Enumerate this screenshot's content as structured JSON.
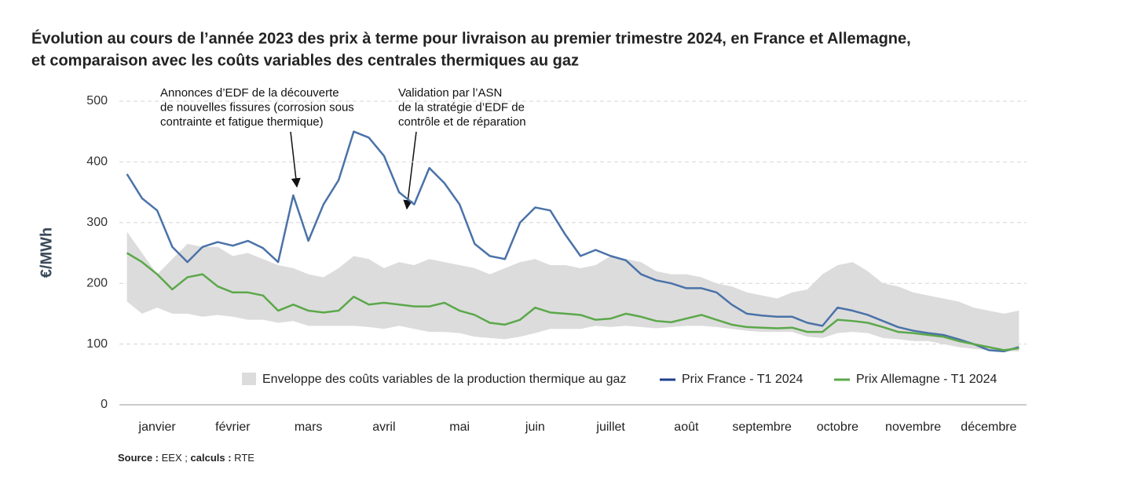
{
  "chart_data": {
    "type": "line",
    "title": [
      "Évolution au cours de l’année 2023 des prix à terme pour livraison au premier trimestre 2024, en France et Allemagne,",
      "et comparaison avec les coûts variables des centrales thermiques au gaz"
    ],
    "y_label": "€/MWh",
    "categories": [
      null,
      null,
      "janvier",
      null,
      null,
      null,
      null,
      "février",
      null,
      null,
      null,
      null,
      "mars",
      null,
      null,
      null,
      null,
      "avril",
      null,
      null,
      null,
      null,
      "mai",
      null,
      null,
      null,
      null,
      "juin",
      null,
      null,
      null,
      null,
      "juillet",
      null,
      null,
      null,
      null,
      "août",
      null,
      null,
      null,
      null,
      "septembre",
      null,
      null,
      null,
      null,
      "octobre",
      null,
      null,
      null,
      null,
      "novembre",
      null,
      null,
      null,
      null,
      "décembre",
      null,
      null
    ],
    "ylim": [
      0,
      500
    ],
    "yticks": [
      0,
      100,
      200,
      300,
      400,
      500
    ],
    "grid": true,
    "envelope": {
      "name": "Enveloppe des coûts variables de la production thermique au gaz",
      "color": "#dcdcdc",
      "upper": [
        285,
        250,
        215,
        240,
        265,
        260,
        260,
        245,
        250,
        240,
        230,
        225,
        215,
        210,
        225,
        245,
        240,
        225,
        235,
        230,
        240,
        235,
        230,
        225,
        215,
        225,
        235,
        240,
        230,
        230,
        225,
        230,
        245,
        240,
        235,
        220,
        215,
        215,
        210,
        200,
        195,
        185,
        180,
        175,
        185,
        190,
        215,
        230,
        235,
        220,
        200,
        195,
        185,
        180,
        175,
        170,
        160,
        155,
        150,
        155
      ],
      "lower": [
        170,
        150,
        160,
        150,
        150,
        145,
        148,
        145,
        140,
        140,
        135,
        138,
        130,
        130,
        130,
        130,
        128,
        125,
        130,
        125,
        120,
        120,
        118,
        112,
        110,
        108,
        112,
        118,
        125,
        125,
        125,
        130,
        128,
        130,
        128,
        126,
        128,
        130,
        130,
        128,
        125,
        122,
        120,
        120,
        120,
        112,
        110,
        118,
        120,
        118,
        110,
        108,
        105,
        105,
        100,
        95,
        92,
        90,
        88,
        88
      ]
    },
    "series": [
      {
        "name": "Prix France - T1 2024",
        "color": "#4a72a8",
        "legend_color": "#1f3f8f",
        "values": [
          380,
          340,
          320,
          260,
          235,
          260,
          268,
          262,
          270,
          258,
          235,
          345,
          270,
          330,
          370,
          450,
          440,
          410,
          350,
          330,
          390,
          365,
          330,
          265,
          245,
          240,
          300,
          325,
          320,
          280,
          245,
          255,
          245,
          238,
          215,
          205,
          200,
          192,
          192,
          185,
          165,
          150,
          147,
          145,
          145,
          135,
          130,
          160,
          155,
          148,
          138,
          128,
          122,
          118,
          115,
          108,
          100,
          90,
          88,
          95
        ]
      },
      {
        "name": "Prix Allemagne - T1 2024",
        "color": "#5ba84a",
        "values": [
          250,
          235,
          215,
          190,
          210,
          215,
          195,
          185,
          185,
          180,
          155,
          165,
          155,
          152,
          155,
          178,
          165,
          168,
          165,
          162,
          162,
          168,
          155,
          148,
          135,
          132,
          140,
          160,
          152,
          150,
          148,
          140,
          142,
          150,
          145,
          138,
          136,
          142,
          148,
          140,
          132,
          128,
          127,
          126,
          127,
          120,
          120,
          140,
          138,
          135,
          128,
          120,
          118,
          115,
          112,
          105,
          100,
          95,
          90,
          93
        ]
      }
    ],
    "annotations": [
      {
        "lines": [
          "Annonces d’EDF de la découverte",
          "de nouvelles fissures (corrosion sous",
          "contrainte et fatigue thermique)"
        ]
      },
      {
        "lines": [
          "Validation par l’ASN",
          "de la stratégie d’EDF de",
          "contrôle et de réparation"
        ]
      }
    ],
    "source": [
      "Source :",
      "EEX ;",
      "calculs :",
      "RTE"
    ]
  }
}
